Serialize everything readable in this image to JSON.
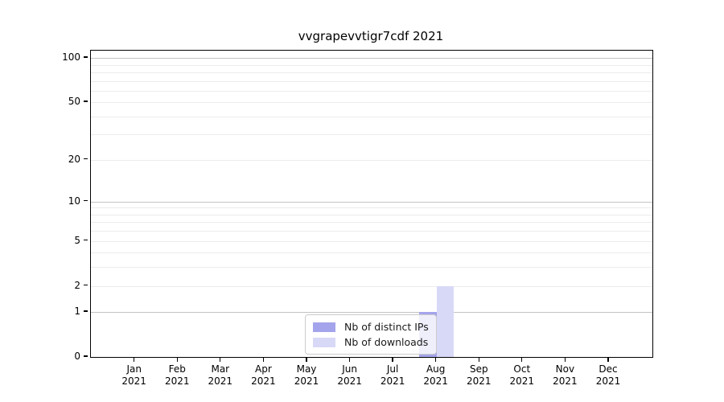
{
  "title": "vvgrapevvtigr7cdf 2021",
  "chart_data": {
    "type": "bar",
    "title": "vvgrapevvtigr7cdf 2021",
    "categories": [
      "Jan",
      "Feb",
      "Mar",
      "Apr",
      "May",
      "Jun",
      "Jul",
      "Aug",
      "Sep",
      "Oct",
      "Nov",
      "Dec"
    ],
    "x_year": "2021",
    "series": [
      {
        "name": "Nb of distinct IPs",
        "color": "#a4a4ec",
        "values": [
          0,
          0,
          0,
          0,
          0,
          0,
          0,
          1,
          0,
          0,
          0,
          0
        ]
      },
      {
        "name": "Nb of downloads",
        "color": "#d8d8f7",
        "values": [
          0,
          0,
          0,
          0,
          0,
          0,
          0,
          2,
          0,
          0,
          0,
          0
        ]
      }
    ],
    "xlabel": "",
    "ylabel": "",
    "yscale": "log1p",
    "ylim": [
      0,
      112
    ],
    "yticks": [
      0,
      1,
      2,
      5,
      10,
      20,
      50,
      100
    ],
    "major_gridlines": [
      1,
      10,
      100
    ],
    "minor_gridlines": [
      2,
      3,
      4,
      5,
      6,
      7,
      8,
      9,
      20,
      30,
      40,
      50,
      60,
      70,
      80,
      90
    ],
    "grid": true,
    "legend_position": "lower center",
    "colors": {
      "major_grid": "#c3c3c3",
      "minor_grid": "#ececec",
      "spine": "#000000",
      "background": "#ffffff"
    }
  }
}
